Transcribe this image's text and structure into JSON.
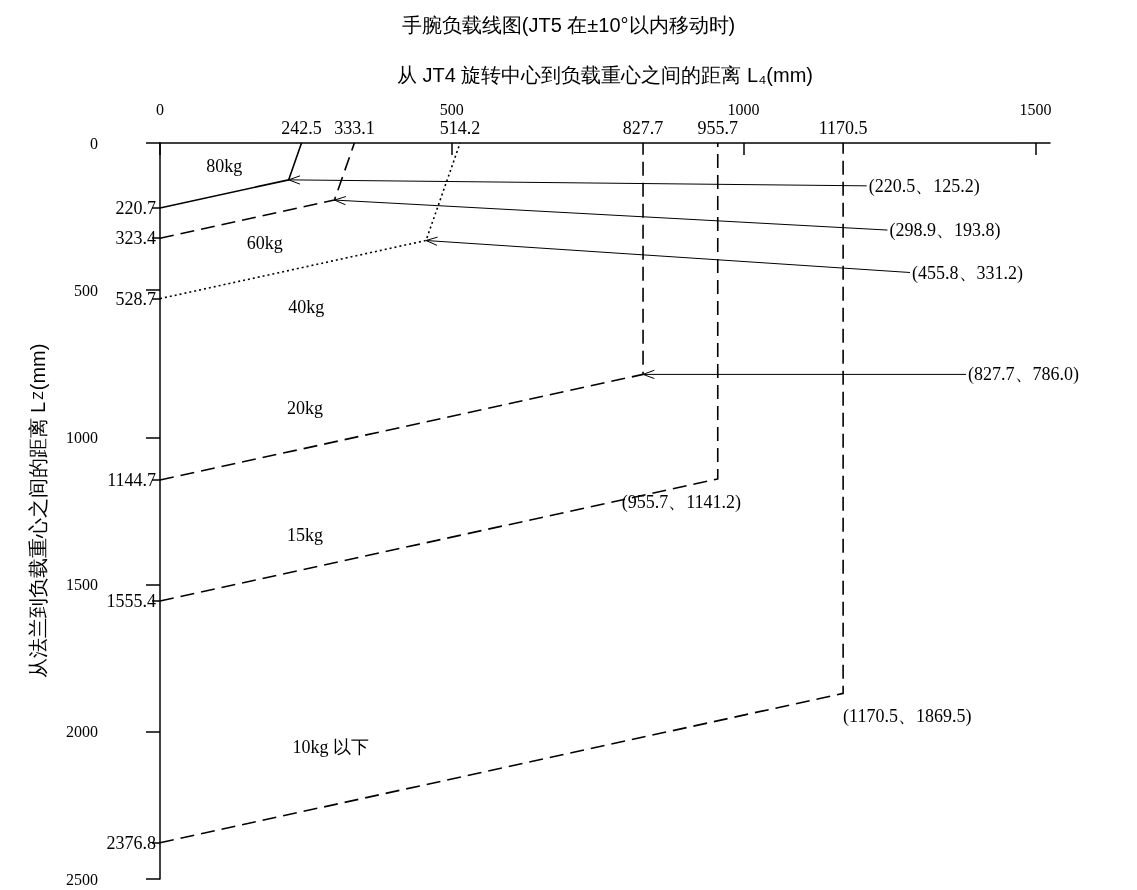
{
  "chart_data": {
    "type": "line",
    "title": "手腕负载线图(JT5 在±10°以内移动时)",
    "xlabel": "从 JT4 旋转中心到负载重心之间的距离 L₄(mm)",
    "ylabel": "从法兰到负载重心之间的距离 L$_{Z}$(mm)",
    "xlim": [
      0,
      1525
    ],
    "ylim": [
      2500,
      0
    ],
    "xticks": [
      0,
      500,
      1000,
      1500
    ],
    "x2lim": [
      0,
      1525
    ],
    "x2ticks": [
      242.5,
      333.1,
      514.2,
      827.7,
      955.7,
      1170.5
    ],
    "yticks": [
      0,
      500,
      1000,
      1500,
      2000,
      2500
    ],
    "y2lim": [
      2500,
      0
    ],
    "y2ticks": [
      220.7,
      323.4,
      528.7,
      1144.7,
      1555.4,
      2376.8
    ],
    "grid": false,
    "legend": false,
    "marker": "none",
    "series": [
      {
        "name": "80kg",
        "color": "#000000",
        "line_style": "solid",
        "x": [
          0,
          220.5,
          242.5
        ],
        "values": [
          220.7,
          125.2,
          0
        ]
      },
      {
        "name": "60kg",
        "color": "#000000",
        "line_style": "dashed",
        "x": [
          0,
          298.9,
          333.1
        ],
        "values": [
          323.4,
          193.8,
          0
        ]
      },
      {
        "name": "40kg",
        "color": "#000000",
        "line_style": "dotted",
        "x": [
          0,
          455.8,
          514.2
        ],
        "values": [
          528.7,
          331.2,
          0
        ]
      },
      {
        "name": "20kg",
        "color": "#000000",
        "line_style": "dashed",
        "x": [
          0,
          827.7,
          827.7
        ],
        "values": [
          1144.7,
          786.0,
          0
        ]
      },
      {
        "name": "15kg",
        "color": "#000000",
        "line_style": "dashed",
        "x": [
          0,
          955.7,
          955.7
        ],
        "values": [
          1555.4,
          1141.2,
          0
        ]
      },
      {
        "name": "10kg 以下",
        "color": "#000000",
        "line_style": "dashed",
        "x": [
          0,
          1170.5,
          1170.5
        ],
        "values": [
          2376.8,
          1869.5,
          0
        ]
      }
    ],
    "annotations": [
      {
        "text": "(220.5、125.2)",
        "x": 220.5,
        "y": 125.2
      },
      {
        "text": "(298.9、193.8)",
        "x": 298.9,
        "y": 193.8
      },
      {
        "text": "(455.8、331.2)",
        "x": 455.8,
        "y": 331.2
      },
      {
        "text": "(827.7、786.0)",
        "x": 827.7,
        "y": 786.0
      },
      {
        "text": "(955.7、1141.2)",
        "x": 955.7,
        "y": 1141.2
      },
      {
        "text": "(1170.5、1869.5)",
        "x": 1170.5,
        "y": 1869.5
      }
    ]
  }
}
